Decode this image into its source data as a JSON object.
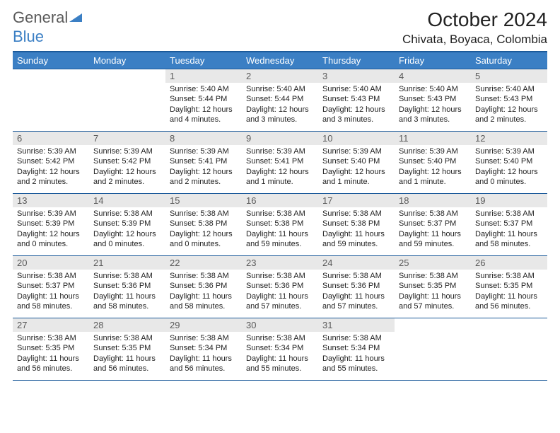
{
  "logo": {
    "text1": "General",
    "text2": "Blue"
  },
  "title": "October 2024",
  "location": "Chivata, Boyaca, Colombia",
  "colors": {
    "header_bg": "#3b7fc4",
    "header_border": "#1b5a9a",
    "daynum_bg": "#e8e8e8",
    "text": "#222222",
    "muted": "#5a5a5a"
  },
  "weekdays": [
    "Sunday",
    "Monday",
    "Tuesday",
    "Wednesday",
    "Thursday",
    "Friday",
    "Saturday"
  ],
  "weeks": [
    [
      null,
      null,
      {
        "n": "1",
        "sr": "Sunrise: 5:40 AM",
        "ss": "Sunset: 5:44 PM",
        "dl": "Daylight: 12 hours and 4 minutes."
      },
      {
        "n": "2",
        "sr": "Sunrise: 5:40 AM",
        "ss": "Sunset: 5:44 PM",
        "dl": "Daylight: 12 hours and 3 minutes."
      },
      {
        "n": "3",
        "sr": "Sunrise: 5:40 AM",
        "ss": "Sunset: 5:43 PM",
        "dl": "Daylight: 12 hours and 3 minutes."
      },
      {
        "n": "4",
        "sr": "Sunrise: 5:40 AM",
        "ss": "Sunset: 5:43 PM",
        "dl": "Daylight: 12 hours and 3 minutes."
      },
      {
        "n": "5",
        "sr": "Sunrise: 5:40 AM",
        "ss": "Sunset: 5:43 PM",
        "dl": "Daylight: 12 hours and 2 minutes."
      }
    ],
    [
      {
        "n": "6",
        "sr": "Sunrise: 5:39 AM",
        "ss": "Sunset: 5:42 PM",
        "dl": "Daylight: 12 hours and 2 minutes."
      },
      {
        "n": "7",
        "sr": "Sunrise: 5:39 AM",
        "ss": "Sunset: 5:42 PM",
        "dl": "Daylight: 12 hours and 2 minutes."
      },
      {
        "n": "8",
        "sr": "Sunrise: 5:39 AM",
        "ss": "Sunset: 5:41 PM",
        "dl": "Daylight: 12 hours and 2 minutes."
      },
      {
        "n": "9",
        "sr": "Sunrise: 5:39 AM",
        "ss": "Sunset: 5:41 PM",
        "dl": "Daylight: 12 hours and 1 minute."
      },
      {
        "n": "10",
        "sr": "Sunrise: 5:39 AM",
        "ss": "Sunset: 5:40 PM",
        "dl": "Daylight: 12 hours and 1 minute."
      },
      {
        "n": "11",
        "sr": "Sunrise: 5:39 AM",
        "ss": "Sunset: 5:40 PM",
        "dl": "Daylight: 12 hours and 1 minute."
      },
      {
        "n": "12",
        "sr": "Sunrise: 5:39 AM",
        "ss": "Sunset: 5:40 PM",
        "dl": "Daylight: 12 hours and 0 minutes."
      }
    ],
    [
      {
        "n": "13",
        "sr": "Sunrise: 5:39 AM",
        "ss": "Sunset: 5:39 PM",
        "dl": "Daylight: 12 hours and 0 minutes."
      },
      {
        "n": "14",
        "sr": "Sunrise: 5:38 AM",
        "ss": "Sunset: 5:39 PM",
        "dl": "Daylight: 12 hours and 0 minutes."
      },
      {
        "n": "15",
        "sr": "Sunrise: 5:38 AM",
        "ss": "Sunset: 5:38 PM",
        "dl": "Daylight: 12 hours and 0 minutes."
      },
      {
        "n": "16",
        "sr": "Sunrise: 5:38 AM",
        "ss": "Sunset: 5:38 PM",
        "dl": "Daylight: 11 hours and 59 minutes."
      },
      {
        "n": "17",
        "sr": "Sunrise: 5:38 AM",
        "ss": "Sunset: 5:38 PM",
        "dl": "Daylight: 11 hours and 59 minutes."
      },
      {
        "n": "18",
        "sr": "Sunrise: 5:38 AM",
        "ss": "Sunset: 5:37 PM",
        "dl": "Daylight: 11 hours and 59 minutes."
      },
      {
        "n": "19",
        "sr": "Sunrise: 5:38 AM",
        "ss": "Sunset: 5:37 PM",
        "dl": "Daylight: 11 hours and 58 minutes."
      }
    ],
    [
      {
        "n": "20",
        "sr": "Sunrise: 5:38 AM",
        "ss": "Sunset: 5:37 PM",
        "dl": "Daylight: 11 hours and 58 minutes."
      },
      {
        "n": "21",
        "sr": "Sunrise: 5:38 AM",
        "ss": "Sunset: 5:36 PM",
        "dl": "Daylight: 11 hours and 58 minutes."
      },
      {
        "n": "22",
        "sr": "Sunrise: 5:38 AM",
        "ss": "Sunset: 5:36 PM",
        "dl": "Daylight: 11 hours and 58 minutes."
      },
      {
        "n": "23",
        "sr": "Sunrise: 5:38 AM",
        "ss": "Sunset: 5:36 PM",
        "dl": "Daylight: 11 hours and 57 minutes."
      },
      {
        "n": "24",
        "sr": "Sunrise: 5:38 AM",
        "ss": "Sunset: 5:36 PM",
        "dl": "Daylight: 11 hours and 57 minutes."
      },
      {
        "n": "25",
        "sr": "Sunrise: 5:38 AM",
        "ss": "Sunset: 5:35 PM",
        "dl": "Daylight: 11 hours and 57 minutes."
      },
      {
        "n": "26",
        "sr": "Sunrise: 5:38 AM",
        "ss": "Sunset: 5:35 PM",
        "dl": "Daylight: 11 hours and 56 minutes."
      }
    ],
    [
      {
        "n": "27",
        "sr": "Sunrise: 5:38 AM",
        "ss": "Sunset: 5:35 PM",
        "dl": "Daylight: 11 hours and 56 minutes."
      },
      {
        "n": "28",
        "sr": "Sunrise: 5:38 AM",
        "ss": "Sunset: 5:35 PM",
        "dl": "Daylight: 11 hours and 56 minutes."
      },
      {
        "n": "29",
        "sr": "Sunrise: 5:38 AM",
        "ss": "Sunset: 5:34 PM",
        "dl": "Daylight: 11 hours and 56 minutes."
      },
      {
        "n": "30",
        "sr": "Sunrise: 5:38 AM",
        "ss": "Sunset: 5:34 PM",
        "dl": "Daylight: 11 hours and 55 minutes."
      },
      {
        "n": "31",
        "sr": "Sunrise: 5:38 AM",
        "ss": "Sunset: 5:34 PM",
        "dl": "Daylight: 11 hours and 55 minutes."
      },
      null,
      null
    ]
  ]
}
